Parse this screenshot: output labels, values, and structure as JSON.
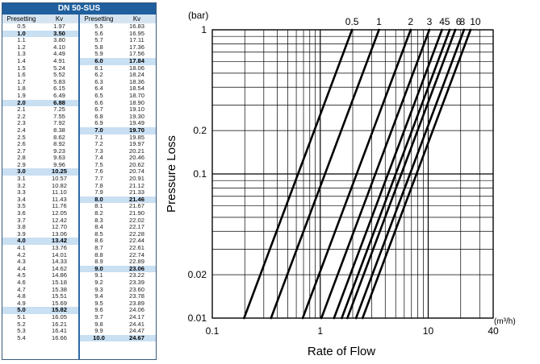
{
  "table": {
    "title": "DN 50-SUS",
    "headers": [
      "Presetting",
      "Kv"
    ],
    "left_rows": [
      [
        "0.5",
        "1.97"
      ],
      [
        "1.0",
        "3.50"
      ],
      [
        "1.1",
        "3.80"
      ],
      [
        "1.2",
        "4.10"
      ],
      [
        "1.3",
        "4.49"
      ],
      [
        "1.4",
        "4.91"
      ],
      [
        "1.5",
        "5.24"
      ],
      [
        "1.6",
        "5.52"
      ],
      [
        "1.7",
        "5.83"
      ],
      [
        "1.8",
        "6.15"
      ],
      [
        "1.9",
        "6.49"
      ],
      [
        "2.0",
        "6.88"
      ],
      [
        "2.1",
        "7.25"
      ],
      [
        "2.2",
        "7.55"
      ],
      [
        "2.3",
        "7.92"
      ],
      [
        "2.4",
        "8.38"
      ],
      [
        "2.5",
        "8.62"
      ],
      [
        "2.6",
        "8.92"
      ],
      [
        "2.7",
        "9.23"
      ],
      [
        "2.8",
        "9.63"
      ],
      [
        "2.9",
        "9.96"
      ],
      [
        "3.0",
        "10.25"
      ],
      [
        "3.1",
        "10.57"
      ],
      [
        "3.2",
        "10.82"
      ],
      [
        "3.3",
        "11.10"
      ],
      [
        "3.4",
        "11.43"
      ],
      [
        "3.5",
        "11.76"
      ],
      [
        "3.6",
        "12.05"
      ],
      [
        "3.7",
        "12.42"
      ],
      [
        "3.8",
        "12.70"
      ],
      [
        "3.9",
        "13.06"
      ],
      [
        "4.0",
        "13.42"
      ],
      [
        "4.1",
        "13.76"
      ],
      [
        "4.2",
        "14.01"
      ],
      [
        "4.3",
        "14.33"
      ],
      [
        "4.4",
        "14.62"
      ],
      [
        "4.5",
        "14.86"
      ],
      [
        "4.6",
        "15.18"
      ],
      [
        "4.7",
        "15.38"
      ],
      [
        "4.8",
        "15.51"
      ],
      [
        "4.9",
        "15.69"
      ],
      [
        "5.0",
        "15.82"
      ],
      [
        "5.1",
        "16.05"
      ],
      [
        "5.2",
        "16.21"
      ],
      [
        "5.3",
        "16.41"
      ],
      [
        "5.4",
        "16.66"
      ]
    ],
    "right_rows": [
      [
        "5.5",
        "16.83"
      ],
      [
        "5.6",
        "16.95"
      ],
      [
        "5.7",
        "17.11"
      ],
      [
        "5.8",
        "17.36"
      ],
      [
        "5.9",
        "17.56"
      ],
      [
        "6.0",
        "17.84"
      ],
      [
        "6.1",
        "18.06"
      ],
      [
        "6.2",
        "18.24"
      ],
      [
        "6.3",
        "18.36"
      ],
      [
        "6.4",
        "18.54"
      ],
      [
        "6.5",
        "18.70"
      ],
      [
        "6.6",
        "18.90"
      ],
      [
        "6.7",
        "19.10"
      ],
      [
        "6.8",
        "19.30"
      ],
      [
        "6.9",
        "19.49"
      ],
      [
        "7.0",
        "19.70"
      ],
      [
        "7.1",
        "19.85"
      ],
      [
        "7.2",
        "19.97"
      ],
      [
        "7.3",
        "20.21"
      ],
      [
        "7.4",
        "20.46"
      ],
      [
        "7.5",
        "20.62"
      ],
      [
        "7.6",
        "20.74"
      ],
      [
        "7.7",
        "20.91"
      ],
      [
        "7.8",
        "21.12"
      ],
      [
        "7.9",
        "21.33"
      ],
      [
        "8.0",
        "21.46"
      ],
      [
        "8.1",
        "21.67"
      ],
      [
        "8.2",
        "21.90"
      ],
      [
        "8.3",
        "22.02"
      ],
      [
        "8.4",
        "22.17"
      ],
      [
        "8.5",
        "22.28"
      ],
      [
        "8.6",
        "22.44"
      ],
      [
        "8.7",
        "22.61"
      ],
      [
        "8.8",
        "22.74"
      ],
      [
        "8.9",
        "22.89"
      ],
      [
        "9.0",
        "23.06"
      ],
      [
        "9.1",
        "23.22"
      ],
      [
        "9.2",
        "23.39"
      ],
      [
        "9.3",
        "23.60"
      ],
      [
        "9.4",
        "23.78"
      ],
      [
        "9.5",
        "23.89"
      ],
      [
        "9.6",
        "24.06"
      ],
      [
        "9.7",
        "24.17"
      ],
      [
        "9.8",
        "24.41"
      ],
      [
        "9.9",
        "24.47"
      ],
      [
        "10.0",
        "24.67"
      ]
    ],
    "highlight_settings": [
      "1.0",
      "2.0",
      "3.0",
      "4.0",
      "5.0",
      "6.0",
      "7.0",
      "8.0",
      "9.0",
      "10.0"
    ],
    "header_color": "#1f5f9e",
    "highlight_color": "#c9dff2"
  },
  "chart_data": {
    "type": "line",
    "xscale": "log",
    "yscale": "log",
    "xlim": [
      0.1,
      40
    ],
    "ylim": [
      0.01,
      1
    ],
    "xlabel": "Rate of Flow",
    "ylabel": "Pressure Loss",
    "x_unit": "(m³/h)",
    "y_unit": "(bar)",
    "x_ticks": [
      "0.1",
      "1",
      "10",
      "40"
    ],
    "y_ticks": [
      "1",
      "0.2",
      "0.1",
      "0.02",
      "0.01"
    ],
    "y_tick_values": [
      1,
      0.2,
      0.1,
      0.02,
      0.01
    ],
    "x_tick_values": [
      0.1,
      1,
      10,
      40
    ],
    "grid": true,
    "series": [
      {
        "name": "0.5",
        "kv": 1.97
      },
      {
        "name": "1",
        "kv": 3.5
      },
      {
        "name": "2",
        "kv": 6.88
      },
      {
        "name": "3",
        "kv": 10.25
      },
      {
        "name": "4",
        "kv": 13.42
      },
      {
        "name": "5",
        "kv": 15.82
      },
      {
        "name": "6",
        "kv": 17.84
      },
      {
        "name": "8",
        "kv": 21.46
      },
      {
        "name": "10",
        "kv": 24.67
      }
    ]
  }
}
